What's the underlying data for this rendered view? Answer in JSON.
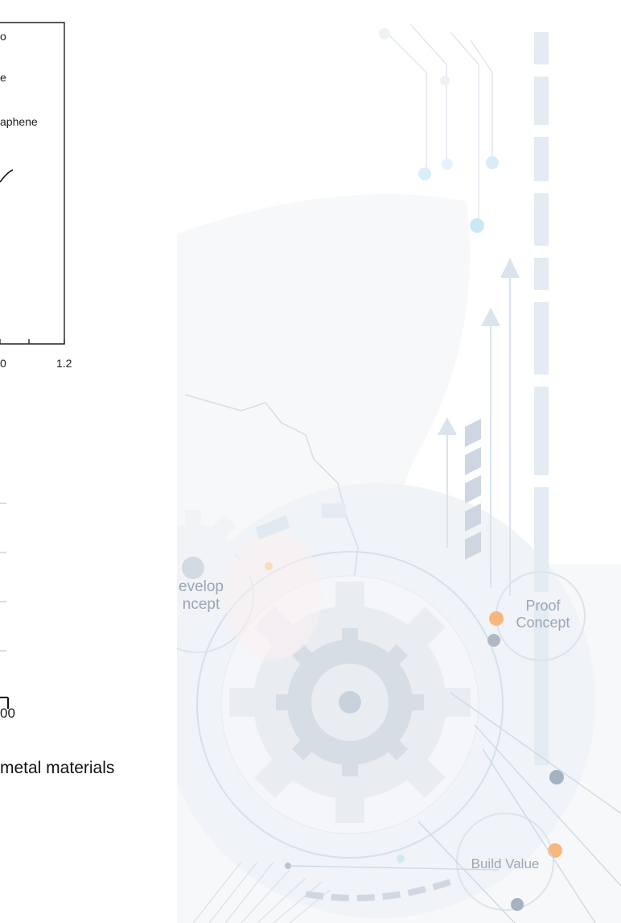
{
  "upper_chart": {
    "legend_fragments": [
      "o",
      "e",
      "aphene"
    ],
    "x_tick_labels": [
      "0",
      "1.2"
    ]
  },
  "lower_chart": {
    "x_tick_fragment": "00"
  },
  "caption_fragment": "metal materials",
  "background_graphic": {
    "gear_labels": {
      "develop_line1": "evelop",
      "develop_line2": "ncept",
      "proof_line1": "Proof",
      "proof_line2": "Concept",
      "build": "Build Value"
    },
    "colors": {
      "accent_orange": "#f6b77c",
      "accent_blue": "#bfe0f1",
      "gear_fill": "#e3e8ee",
      "line_blue": "#c9d7e5"
    }
  }
}
